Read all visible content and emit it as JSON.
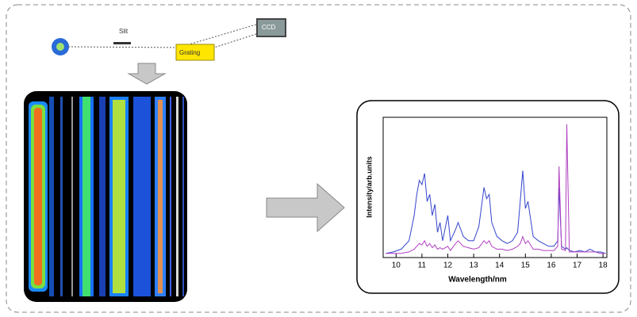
{
  "diagram": {
    "labels": {
      "slit": "Slit",
      "grating": "Grating",
      "ccd": "CCD"
    }
  },
  "chart_data": {
    "type": "line",
    "x_label": "Wavelength/nm",
    "y_label": "Intensity/arb.units",
    "x": [
      9.6,
      9.9,
      10.2,
      10.5,
      10.7,
      10.8,
      10.9,
      11.0,
      11.1,
      11.2,
      11.3,
      11.4,
      11.5,
      11.6,
      11.7,
      11.8,
      12.0,
      12.1,
      12.3,
      12.4,
      12.6,
      12.8,
      13.0,
      13.2,
      13.4,
      13.5,
      13.6,
      13.7,
      13.9,
      14.1,
      14.3,
      14.5,
      14.7,
      14.8,
      14.9,
      15.0,
      15.1,
      15.3,
      15.5,
      15.7,
      15.9,
      16.1,
      16.25,
      16.3,
      16.4,
      16.55,
      16.6,
      16.7,
      16.9,
      17.1,
      17.3,
      17.5,
      17.7,
      17.9,
      18.1
    ],
    "series": [
      {
        "color": "#3344cc",
        "values": [
          3,
          4,
          6,
          12,
          30,
          45,
          55,
          52,
          60,
          40,
          45,
          30,
          38,
          18,
          25,
          12,
          30,
          12,
          20,
          25,
          15,
          12,
          12,
          22,
          50,
          42,
          45,
          25,
          15,
          12,
          10,
          12,
          18,
          40,
          62,
          35,
          40,
          15,
          12,
          10,
          8,
          8,
          12,
          50,
          8,
          6,
          7,
          5,
          4,
          5,
          4,
          6,
          4,
          4,
          3
        ]
      },
      {
        "color": "#b040c0",
        "values": [
          3,
          3,
          3,
          4,
          6,
          8,
          10,
          9,
          12,
          8,
          10,
          7,
          9,
          6,
          7,
          6,
          8,
          5,
          10,
          12,
          8,
          7,
          6,
          7,
          12,
          10,
          12,
          8,
          6,
          6,
          5,
          6,
          8,
          10,
          15,
          10,
          12,
          6,
          6,
          5,
          5,
          5,
          8,
          65,
          6,
          5,
          95,
          4,
          4,
          4,
          4,
          4,
          4,
          3,
          3
        ]
      }
    ],
    "xlim": [
      9.5,
      18.15
    ],
    "xticks": [
      10,
      11,
      12,
      13,
      14,
      15,
      16,
      17,
      18
    ],
    "ylim": [
      0,
      100
    ]
  }
}
